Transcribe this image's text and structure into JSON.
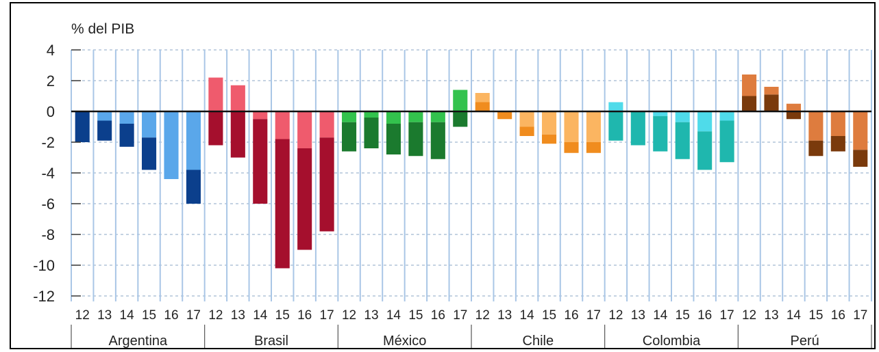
{
  "chart_data": {
    "type": "bar",
    "stacked": true,
    "title": "",
    "ylabel": "% del PIB",
    "ylim": [
      -12,
      4
    ],
    "yticks": [
      "4",
      "2",
      "0",
      "-2",
      "-4",
      "-6",
      "-8",
      "-10",
      "-12"
    ],
    "grid": true,
    "year_labels": [
      "12",
      "13",
      "14",
      "15",
      "16",
      "17"
    ],
    "groups": [
      {
        "name": "Argentina",
        "colors": {
          "dark": "#0b3f8c",
          "light": "#5aa7ea"
        },
        "bars": [
          {
            "year": "12",
            "dark": -2.0,
            "light": 0.0,
            "dark_first": true
          },
          {
            "year": "13",
            "dark": -1.3,
            "light": -0.6,
            "dark_first": false
          },
          {
            "year": "14",
            "dark": -1.5,
            "light": -0.8,
            "dark_first": false
          },
          {
            "year": "15",
            "dark": -2.1,
            "light": -1.7,
            "dark_first": false
          },
          {
            "year": "16",
            "dark": 0.0,
            "light": -4.4,
            "dark_first": false
          },
          {
            "year": "17",
            "dark": -2.2,
            "light": -3.8,
            "dark_first": false
          }
        ]
      },
      {
        "name": "Brasil",
        "colors": {
          "dark": "#a50f2d",
          "light": "#ef5b6d"
        },
        "bars": [
          {
            "year": "12",
            "dark": -2.2,
            "light": 2.2,
            "dark_first": true
          },
          {
            "year": "13",
            "dark": -3.0,
            "light": 1.7,
            "dark_first": true
          },
          {
            "year": "14",
            "dark": -5.5,
            "light": -0.5,
            "dark_first": false
          },
          {
            "year": "15",
            "dark": -8.4,
            "light": -1.8,
            "dark_first": false
          },
          {
            "year": "16",
            "dark": -6.6,
            "light": -2.4,
            "dark_first": false
          },
          {
            "year": "17",
            "dark": -6.1,
            "light": -1.7,
            "dark_first": false
          }
        ]
      },
      {
        "name": "México",
        "colors": {
          "dark": "#1b7a2e",
          "light": "#33c24d"
        },
        "bars": [
          {
            "year": "12",
            "dark": -1.9,
            "light": -0.7,
            "dark_first": false
          },
          {
            "year": "13",
            "dark": -2.0,
            "light": -0.4,
            "dark_first": false
          },
          {
            "year": "14",
            "dark": -2.0,
            "light": -0.8,
            "dark_first": false
          },
          {
            "year": "15",
            "dark": -2.2,
            "light": -0.7,
            "dark_first": false
          },
          {
            "year": "16",
            "dark": -2.4,
            "light": -0.7,
            "dark_first": false
          },
          {
            "year": "17",
            "dark": -1.0,
            "light": 1.4,
            "dark_first": true
          }
        ]
      },
      {
        "name": "Chile",
        "colors": {
          "dark": "#f08c1e",
          "light": "#fbb561"
        },
        "bars": [
          {
            "year": "12",
            "dark": 0.6,
            "light": 0.6,
            "dark_first": true
          },
          {
            "year": "13",
            "dark": -0.5,
            "light": 0.0,
            "dark_first": true
          },
          {
            "year": "14",
            "dark": -0.6,
            "light": -1.0,
            "dark_first": false
          },
          {
            "year": "15",
            "dark": -0.6,
            "light": -1.5,
            "dark_first": false
          },
          {
            "year": "16",
            "dark": -0.7,
            "light": -2.0,
            "dark_first": false
          },
          {
            "year": "17",
            "dark": -0.7,
            "light": -2.0,
            "dark_first": false
          }
        ]
      },
      {
        "name": "Colombia",
        "colors": {
          "dark": "#1fb7ae",
          "light": "#4fdbea"
        },
        "bars": [
          {
            "year": "12",
            "dark": -1.9,
            "light": 0.6,
            "dark_first": true
          },
          {
            "year": "13",
            "dark": -2.2,
            "light": 0.0,
            "dark_first": true
          },
          {
            "year": "14",
            "dark": -2.3,
            "light": -0.3,
            "dark_first": false
          },
          {
            "year": "15",
            "dark": -2.4,
            "light": -0.7,
            "dark_first": false
          },
          {
            "year": "16",
            "dark": -2.5,
            "light": -1.3,
            "dark_first": false
          },
          {
            "year": "17",
            "dark": -2.7,
            "light": -0.6,
            "dark_first": false
          }
        ]
      },
      {
        "name": "Perú",
        "colors": {
          "dark": "#7a3a0c",
          "light": "#de7c3e"
        },
        "bars": [
          {
            "year": "12",
            "dark": 1.0,
            "light": 1.4,
            "dark_first": true
          },
          {
            "year": "13",
            "dark": 1.1,
            "light": 0.5,
            "dark_first": true
          },
          {
            "year": "14",
            "dark": -0.5,
            "light": 0.5,
            "dark_first": true
          },
          {
            "year": "15",
            "dark": -1.0,
            "light": -1.9,
            "dark_first": false
          },
          {
            "year": "16",
            "dark": -1.0,
            "light": -1.6,
            "dark_first": false
          },
          {
            "year": "17",
            "dark": -1.1,
            "light": -2.5,
            "dark_first": false
          }
        ]
      }
    ]
  }
}
